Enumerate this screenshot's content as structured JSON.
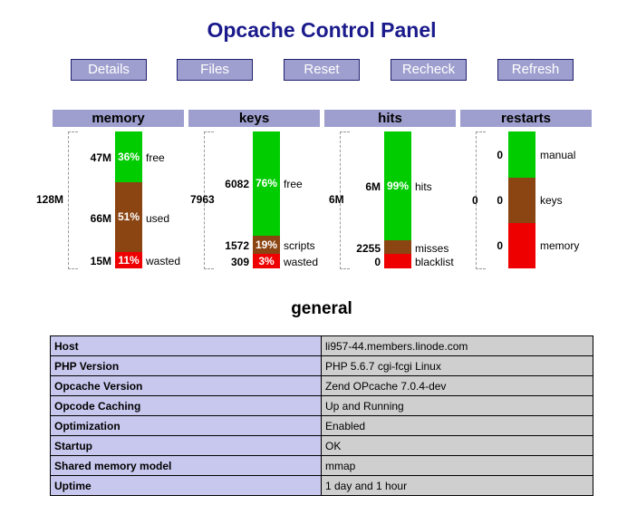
{
  "title": "Opcache Control Panel",
  "nav": [
    "Details",
    "Files",
    "Reset",
    "Recheck",
    "Refresh"
  ],
  "colors": {
    "free": "#00cc00",
    "used": "#8b4513",
    "wasted": "#ee0000",
    "header": "#9f9fcf"
  },
  "memory": {
    "header": "memory",
    "total": "128M",
    "segments": [
      {
        "value": "47M",
        "pct": "36%",
        "label": "free"
      },
      {
        "value": "66M",
        "pct": "51%",
        "label": "used"
      },
      {
        "value": "15M",
        "pct": "11%",
        "label": "wasted"
      }
    ]
  },
  "keys": {
    "header": "keys",
    "total": "7963",
    "segments": [
      {
        "value": "6082",
        "pct": "76%",
        "label": "free"
      },
      {
        "value": "1572",
        "pct": "19%",
        "label": "scripts"
      },
      {
        "value": "309",
        "pct": "3%",
        "label": "wasted"
      }
    ]
  },
  "hits": {
    "header": "hits",
    "total": "6M",
    "segments": [
      {
        "value": "6M",
        "pct": "99%",
        "label": "hits"
      },
      {
        "value": "2255",
        "label": "misses"
      },
      {
        "value": "0",
        "label": "blacklist"
      }
    ]
  },
  "restarts": {
    "header": "restarts",
    "total": "0",
    "segments": [
      {
        "value": "0",
        "label": "manual"
      },
      {
        "value": "0",
        "label": "keys"
      },
      {
        "value": "0",
        "label": "memory"
      }
    ]
  },
  "general": {
    "title": "general",
    "rows": [
      {
        "key": "Host",
        "value": "li957-44.members.linode.com"
      },
      {
        "key": "PHP Version",
        "value": "PHP 5.6.7 cgi-fcgi Linux"
      },
      {
        "key": "Opcache Version",
        "value": "Zend OPcache 7.0.4-dev"
      },
      {
        "key": "Opcode Caching",
        "value": "Up and Running"
      },
      {
        "key": "Optimization",
        "value": "Enabled"
      },
      {
        "key": "Startup",
        "value": "OK"
      },
      {
        "key": "Shared memory model",
        "value": "mmap"
      },
      {
        "key": "Uptime",
        "value": "1 day and 1 hour"
      }
    ]
  }
}
